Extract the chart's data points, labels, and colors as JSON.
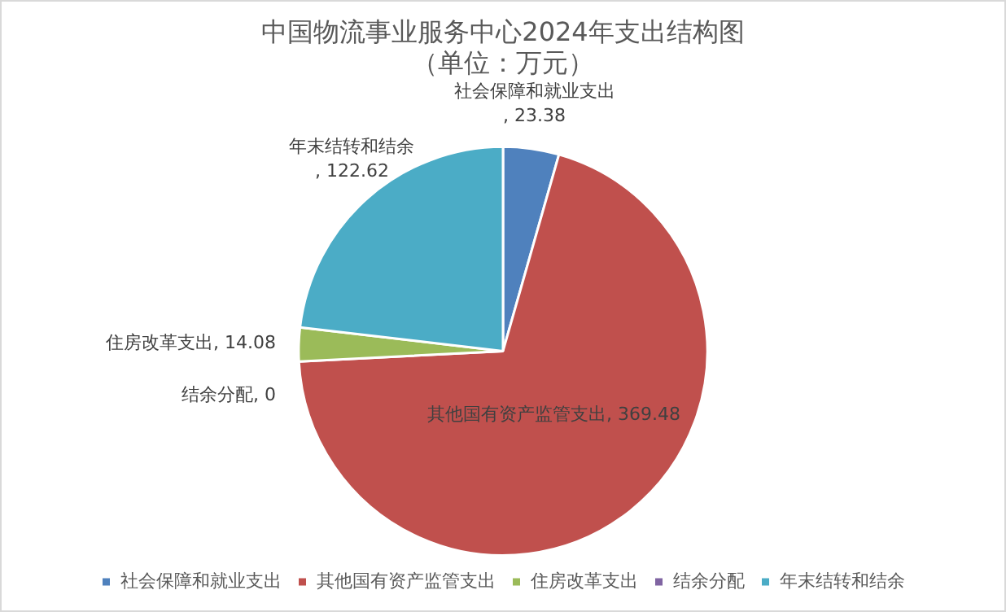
{
  "chart_data": {
    "type": "pie",
    "title": "中国物流事业服务中心2024年支出结构图",
    "subtitle": "（单位：万元）",
    "categories": [
      "社会保障和就业支出",
      "其他国有资产监管支出",
      "住房改革支出",
      "结余分配",
      "年末结转和结余"
    ],
    "values": [
      23.38,
      369.48,
      14.08,
      0,
      122.62
    ],
    "value_labels": [
      ", 23.38",
      ", 369.48",
      ", 14.08",
      ", 0",
      ", 122.62"
    ],
    "colors": [
      "#4f81bd",
      "#c0504d",
      "#9bbb59",
      "#8064a2",
      "#4bacc6"
    ],
    "legend": "bottom"
  }
}
